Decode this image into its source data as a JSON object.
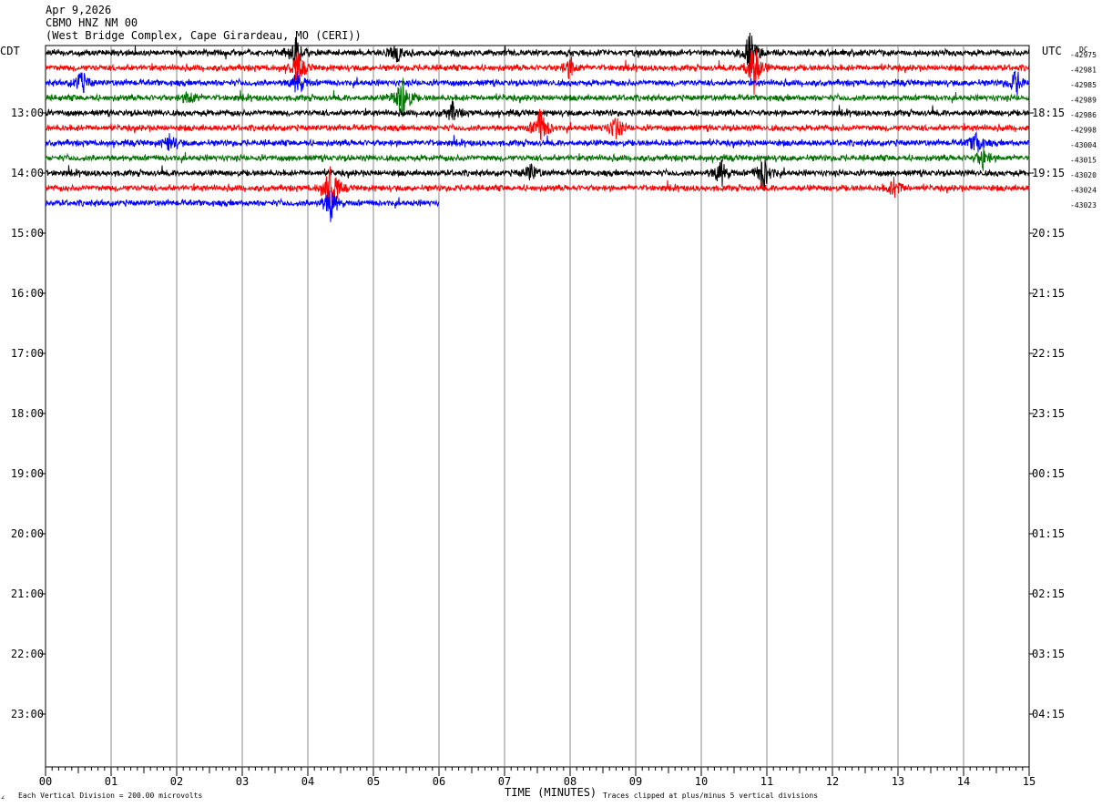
{
  "header": {
    "date": "Apr 9,2026",
    "station": "CBMO HNZ NM 00",
    "location": "(West Bridge Complex, Cape Girardeau, MO (CERI))"
  },
  "chart_data": {
    "type": "line",
    "title": "CBMO HNZ NM 00",
    "left_axis_label": "CDT",
    "right_axis_label": "UTC",
    "dc_label": "DC",
    "xlabel": "TIME (MINUTES)",
    "xlim": [
      0,
      15
    ],
    "x_ticks": [
      "00",
      "01",
      "02",
      "03",
      "04",
      "05",
      "06",
      "07",
      "08",
      "09",
      "10",
      "11",
      "12",
      "13",
      "14",
      "15"
    ],
    "left_hour_labels": [
      "13:00",
      "14:00",
      "15:00",
      "16:00",
      "17:00",
      "18:00",
      "19:00",
      "20:00",
      "21:00",
      "22:00",
      "23:00"
    ],
    "right_hour_labels": [
      "18:15",
      "19:15",
      "20:15",
      "21:15",
      "22:15",
      "23:15",
      "00:15",
      "01:15",
      "02:15",
      "03:15",
      "04:15"
    ],
    "trace_colors": [
      "#000000",
      "#ff0000",
      "#0000ff",
      "#007000"
    ],
    "traces": [
      {
        "row": 0,
        "color": "#000000",
        "dc": "-42975",
        "end_minute": 15
      },
      {
        "row": 1,
        "color": "#ff0000",
        "dc": "-42981",
        "end_minute": 15
      },
      {
        "row": 2,
        "color": "#0000ff",
        "dc": "-42985",
        "end_minute": 15
      },
      {
        "row": 3,
        "color": "#007000",
        "dc": "-42989",
        "end_minute": 15
      },
      {
        "row": 4,
        "color": "#000000",
        "dc": "-42986",
        "end_minute": 15
      },
      {
        "row": 5,
        "color": "#ff0000",
        "dc": "-42998",
        "end_minute": 15
      },
      {
        "row": 6,
        "color": "#0000ff",
        "dc": "-43004",
        "end_minute": 15
      },
      {
        "row": 7,
        "color": "#007000",
        "dc": "-43015",
        "end_minute": 15
      },
      {
        "row": 8,
        "color": "#000000",
        "dc": "-43020",
        "end_minute": 15
      },
      {
        "row": 9,
        "color": "#ff0000",
        "dc": "-43024",
        "end_minute": 15
      },
      {
        "row": 10,
        "color": "#0000ff",
        "dc": "-43023",
        "end_minute": 6
      }
    ],
    "events": [
      {
        "row": 0,
        "minute": 3.82,
        "amp": 1.6
      },
      {
        "row": 0,
        "minute": 5.35,
        "amp": 1.0
      },
      {
        "row": 0,
        "minute": 10.75,
        "amp": 2.6
      },
      {
        "row": 1,
        "minute": 3.85,
        "amp": 2.0
      },
      {
        "row": 1,
        "minute": 8.0,
        "amp": 1.4
      },
      {
        "row": 1,
        "minute": 10.8,
        "amp": 3.5
      },
      {
        "row": 2,
        "minute": 0.55,
        "amp": 1.5
      },
      {
        "row": 2,
        "minute": 3.85,
        "amp": 1.6
      },
      {
        "row": 2,
        "minute": 14.8,
        "amp": 1.6
      },
      {
        "row": 3,
        "minute": 5.45,
        "amp": 3.3
      },
      {
        "row": 3,
        "minute": 2.2,
        "amp": 1.0
      },
      {
        "row": 4,
        "minute": 6.2,
        "amp": 1.2
      },
      {
        "row": 5,
        "minute": 7.55,
        "amp": 2.6
      },
      {
        "row": 5,
        "minute": 8.7,
        "amp": 1.5
      },
      {
        "row": 6,
        "minute": 1.9,
        "amp": 1.1
      },
      {
        "row": 6,
        "minute": 14.2,
        "amp": 1.4
      },
      {
        "row": 7,
        "minute": 14.3,
        "amp": 1.3
      },
      {
        "row": 8,
        "minute": 10.3,
        "amp": 1.8
      },
      {
        "row": 8,
        "minute": 10.95,
        "amp": 2.2
      },
      {
        "row": 8,
        "minute": 7.4,
        "amp": 1.2
      },
      {
        "row": 9,
        "minute": 4.35,
        "amp": 3.8
      },
      {
        "row": 9,
        "minute": 12.95,
        "amp": 1.3
      },
      {
        "row": 10,
        "minute": 4.35,
        "amp": 2.2
      }
    ],
    "scale_note": "Each Vertical Division =  200.00 microvolts",
    "clip_note": "Traces clipped at plus/minus 5 vertical divisions",
    "grid": true
  }
}
